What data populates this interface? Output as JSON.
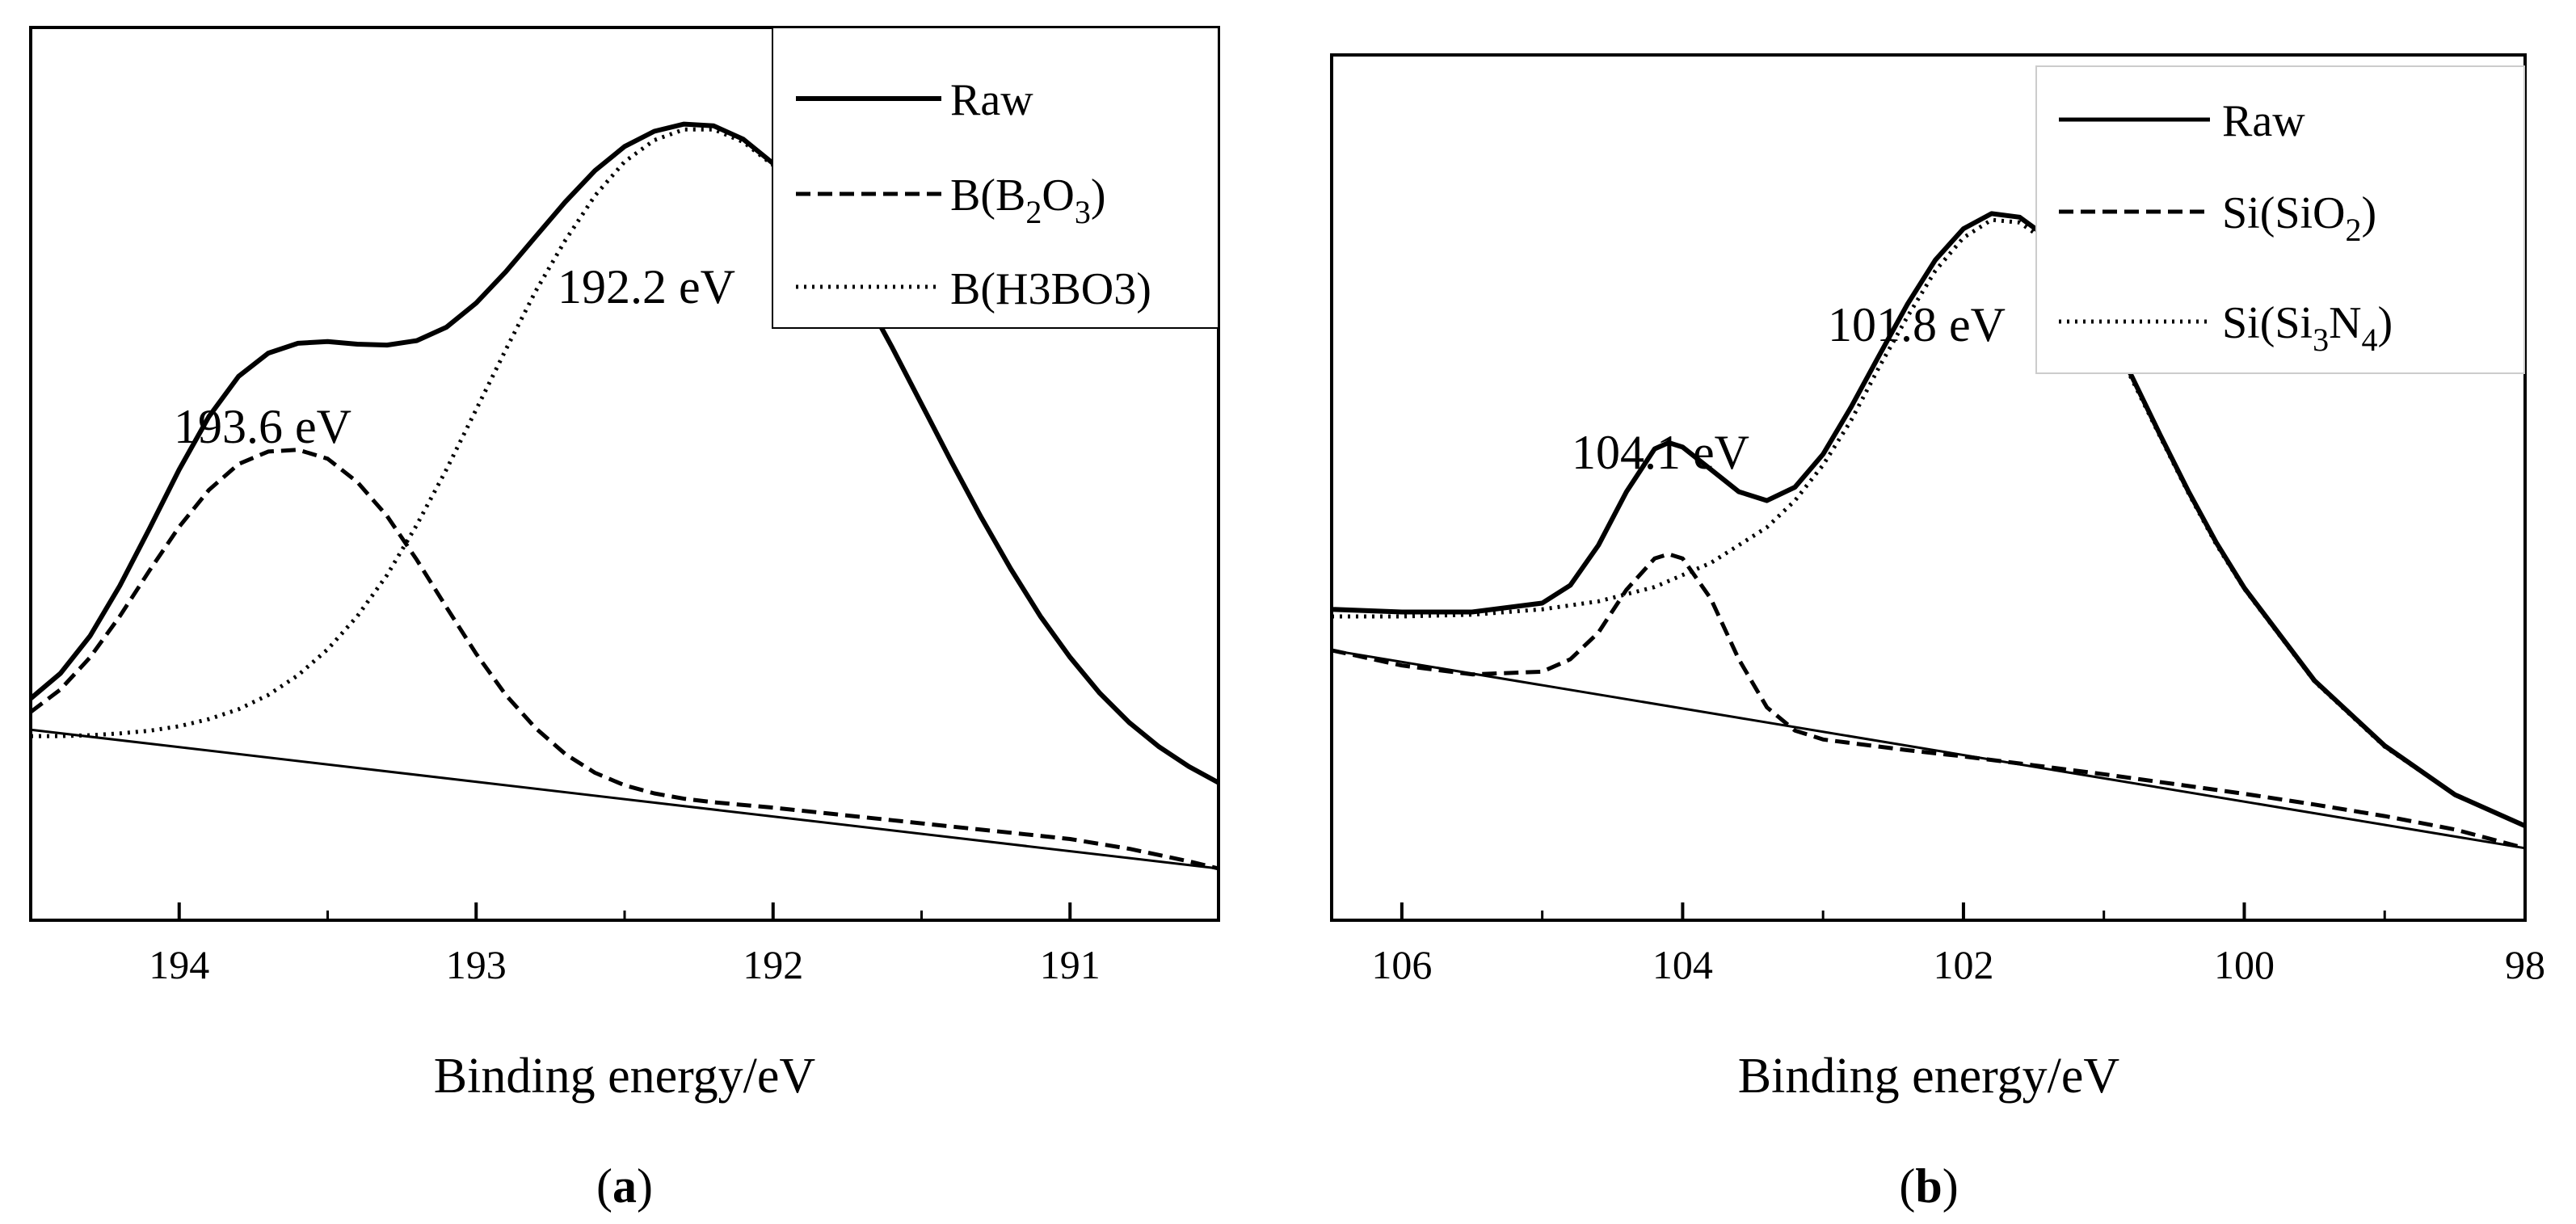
{
  "chart_data": [
    {
      "type": "line",
      "panel_label": "a",
      "xlabel": "Binding energy/eV",
      "ylabel": "",
      "x_reversed": true,
      "xlim": [
        194.5,
        190.5
      ],
      "ylim": [
        0,
        1
      ],
      "x_ticks": [
        194,
        193,
        192,
        191
      ],
      "x_tick_labels": [
        "194",
        "193",
        "192",
        "191"
      ],
      "legend_position": "top-right",
      "legend": [
        {
          "label": "Raw",
          "style": "solid"
        },
        {
          "label": "B(B2O3)",
          "base": "B(B",
          "sub1": "2",
          "mid": "O",
          "sub2": "3",
          "tail": ")",
          "style": "dashed"
        },
        {
          "label": "B(H3BO3)",
          "style": "dotted"
        }
      ],
      "annotations": [
        {
          "text": "193.6 eV",
          "x": 193.6
        },
        {
          "text": "192.2 eV",
          "x": 192.2
        }
      ],
      "background_line": {
        "x": [
          194.5,
          190.5
        ],
        "y": [
          0.155,
          0.0
        ]
      },
      "series": [
        {
          "name": "Raw",
          "style": "solid",
          "x": [
            194.5,
            194.4,
            194.3,
            194.2,
            194.1,
            194.0,
            193.9,
            193.8,
            193.7,
            193.6,
            193.5,
            193.4,
            193.3,
            193.2,
            193.1,
            193.0,
            192.9,
            192.8,
            192.7,
            192.6,
            192.5,
            192.4,
            192.3,
            192.2,
            192.1,
            192.0,
            191.9,
            191.8,
            191.7,
            191.6,
            191.5,
            191.4,
            191.3,
            191.2,
            191.1,
            191.0,
            190.9,
            190.8,
            190.7,
            190.6,
            190.5
          ],
          "y": [
            0.19,
            0.218,
            0.26,
            0.316,
            0.38,
            0.446,
            0.505,
            0.55,
            0.576,
            0.587,
            0.589,
            0.586,
            0.585,
            0.59,
            0.605,
            0.632,
            0.667,
            0.706,
            0.745,
            0.78,
            0.807,
            0.824,
            0.832,
            0.83,
            0.815,
            0.788,
            0.749,
            0.7,
            0.644,
            0.583,
            0.519,
            0.455,
            0.393,
            0.335,
            0.282,
            0.236,
            0.196,
            0.163,
            0.136,
            0.114,
            0.096
          ]
        },
        {
          "name": "B(B2O3)",
          "style": "dashed",
          "x": [
            194.5,
            194.4,
            194.3,
            194.2,
            194.1,
            194.0,
            193.9,
            193.8,
            193.7,
            193.6,
            193.5,
            193.4,
            193.3,
            193.2,
            193.1,
            193.0,
            192.9,
            192.8,
            192.7,
            192.6,
            192.5,
            192.4,
            192.3,
            192.2,
            192.0,
            191.8,
            191.6,
            191.4,
            191.2,
            191.0,
            190.8,
            190.6,
            190.5
          ],
          "y": [
            0.175,
            0.2,
            0.236,
            0.282,
            0.333,
            0.382,
            0.423,
            0.452,
            0.466,
            0.468,
            0.458,
            0.432,
            0.394,
            0.345,
            0.292,
            0.24,
            0.194,
            0.157,
            0.128,
            0.107,
            0.093,
            0.084,
            0.078,
            0.074,
            0.068,
            0.061,
            0.054,
            0.047,
            0.04,
            0.033,
            0.022,
            0.008,
            0.0
          ]
        },
        {
          "name": "B(H3BO3)",
          "style": "dotted",
          "x": [
            194.5,
            194.4,
            194.3,
            194.2,
            194.1,
            194.0,
            193.9,
            193.8,
            193.7,
            193.6,
            193.5,
            193.4,
            193.3,
            193.2,
            193.1,
            193.0,
            192.9,
            192.8,
            192.7,
            192.6,
            192.5,
            192.4,
            192.3,
            192.2,
            192.1,
            192.0,
            191.9,
            191.8,
            191.7,
            191.6,
            191.5,
            191.4,
            191.3,
            191.2,
            191.1,
            191.0,
            190.9,
            190.8,
            190.7,
            190.6,
            190.5
          ],
          "y": [
            0.148,
            0.148,
            0.149,
            0.151,
            0.154,
            0.159,
            0.167,
            0.178,
            0.194,
            0.216,
            0.245,
            0.282,
            0.328,
            0.384,
            0.446,
            0.513,
            0.58,
            0.645,
            0.702,
            0.752,
            0.79,
            0.814,
            0.826,
            0.826,
            0.812,
            0.786,
            0.747,
            0.699,
            0.643,
            0.583,
            0.519,
            0.455,
            0.393,
            0.335,
            0.282,
            0.236,
            0.196,
            0.163,
            0.136,
            0.114,
            0.096
          ]
        }
      ]
    },
    {
      "type": "line",
      "panel_label": "b",
      "xlabel": "Binding energy/eV",
      "ylabel": "",
      "x_reversed": true,
      "xlim": [
        106.5,
        98.0
      ],
      "ylim": [
        0,
        1
      ],
      "x_ticks": [
        106,
        104,
        102,
        100,
        98
      ],
      "x_tick_labels": [
        "106",
        "104",
        "102",
        "100",
        "98"
      ],
      "legend_position": "top-right",
      "legend": [
        {
          "label": "Raw",
          "style": "solid"
        },
        {
          "label": "Si(SiO2)",
          "base": "Si(SiO",
          "sub1": "2",
          "mid": ")",
          "sub2": "",
          "tail": "",
          "style": "dashed"
        },
        {
          "label": "Si(Si3N4)",
          "base": "Si(Si",
          "sub1": "3",
          "mid": "N",
          "sub2": "4",
          "tail": ")",
          "style": "dotted"
        }
      ],
      "annotations": [
        {
          "text": "104.1 eV",
          "x": 104.1
        },
        {
          "text": "101.8 eV",
          "x": 101.8
        }
      ],
      "background_line": {
        "x": [
          106.5,
          98.0
        ],
        "y": [
          0.272,
          0.05
        ]
      },
      "series": [
        {
          "name": "Raw",
          "style": "solid",
          "x": [
            106.5,
            106.0,
            105.5,
            105.0,
            104.8,
            104.6,
            104.4,
            104.2,
            104.1,
            104.0,
            103.8,
            103.6,
            103.4,
            103.2,
            103.0,
            102.8,
            102.6,
            102.4,
            102.2,
            102.0,
            101.8,
            101.6,
            101.4,
            101.2,
            101.0,
            100.8,
            100.6,
            100.4,
            100.2,
            100.0,
            99.5,
            99.0,
            98.5,
            98.0
          ],
          "y": [
            0.318,
            0.315,
            0.315,
            0.325,
            0.345,
            0.39,
            0.45,
            0.498,
            0.505,
            0.5,
            0.475,
            0.45,
            0.44,
            0.455,
            0.492,
            0.545,
            0.603,
            0.66,
            0.71,
            0.745,
            0.762,
            0.758,
            0.735,
            0.695,
            0.641,
            0.579,
            0.514,
            0.451,
            0.393,
            0.342,
            0.238,
            0.165,
            0.11,
            0.075
          ]
        },
        {
          "name": "Si(SiO2)",
          "style": "dashed",
          "x": [
            106.5,
            106.0,
            105.5,
            105.0,
            104.8,
            104.6,
            104.4,
            104.2,
            104.1,
            104.0,
            103.8,
            103.6,
            103.4,
            103.2,
            103.0,
            102.8,
            102.4,
            102.0,
            101.5,
            101.0,
            100.5,
            100.0,
            99.5,
            99.0,
            98.5,
            98.0
          ],
          "y": [
            0.272,
            0.255,
            0.245,
            0.248,
            0.262,
            0.292,
            0.34,
            0.375,
            0.38,
            0.375,
            0.33,
            0.262,
            0.208,
            0.182,
            0.172,
            0.168,
            0.16,
            0.153,
            0.143,
            0.133,
            0.122,
            0.111,
            0.099,
            0.086,
            0.071,
            0.05
          ]
        },
        {
          "name": "Si(Si3N4)",
          "style": "dotted",
          "x": [
            106.5,
            106.0,
            105.5,
            105.0,
            104.6,
            104.2,
            103.8,
            103.4,
            103.2,
            103.0,
            102.8,
            102.6,
            102.4,
            102.2,
            102.0,
            101.8,
            101.6,
            101.4,
            101.2,
            101.0,
            100.8,
            100.6,
            100.4,
            100.2,
            100.0,
            99.5,
            99.0,
            98.5,
            98.0
          ],
          "y": [
            0.31,
            0.31,
            0.312,
            0.318,
            0.327,
            0.343,
            0.37,
            0.41,
            0.44,
            0.48,
            0.53,
            0.59,
            0.646,
            0.698,
            0.735,
            0.755,
            0.752,
            0.73,
            0.69,
            0.637,
            0.576,
            0.512,
            0.449,
            0.391,
            0.341,
            0.237,
            0.164,
            0.11,
            0.075
          ]
        }
      ]
    }
  ]
}
